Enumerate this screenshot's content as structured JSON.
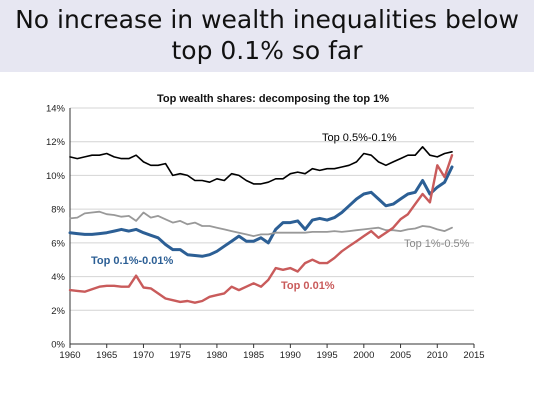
{
  "slide": {
    "title_line1": "No increase in wealth inequalities below",
    "title_line2": "top 0.1% so far"
  },
  "chart_data": {
    "type": "line",
    "title": "Top wealth shares: decomposing the top 1%",
    "xlabel": "",
    "ylabel": "",
    "xlim": [
      1960,
      2015
    ],
    "ylim": [
      0,
      14
    ],
    "x_ticks": [
      "1960",
      "1965",
      "1970",
      "1975",
      "1980",
      "1985",
      "1990",
      "1995",
      "2000",
      "2005",
      "2010",
      "2015"
    ],
    "y_ticks": [
      "0%",
      "2%",
      "4%",
      "6%",
      "8%",
      "10%",
      "12%",
      "14%"
    ],
    "grid": "horizontal",
    "x": [
      1960,
      1961,
      1962,
      1963,
      1964,
      1965,
      1966,
      1967,
      1968,
      1969,
      1970,
      1971,
      1972,
      1973,
      1974,
      1975,
      1976,
      1977,
      1978,
      1979,
      1980,
      1981,
      1982,
      1983,
      1984,
      1985,
      1986,
      1987,
      1988,
      1989,
      1990,
      1991,
      1992,
      1993,
      1994,
      1995,
      1996,
      1997,
      1998,
      1999,
      2000,
      2001,
      2002,
      2003,
      2004,
      2005,
      2006,
      2007,
      2008,
      2009,
      2010,
      2011,
      2012
    ],
    "series": [
      {
        "name": "Top 0.5%-0.1%",
        "color": "#000000",
        "label_color": "#000000",
        "values": [
          11.1,
          11.0,
          11.1,
          11.2,
          11.2,
          11.3,
          11.1,
          11.0,
          11.0,
          11.2,
          10.8,
          10.6,
          10.6,
          10.7,
          10.0,
          10.1,
          10.0,
          9.7,
          9.7,
          9.6,
          9.8,
          9.7,
          10.1,
          10.0,
          9.7,
          9.5,
          9.5,
          9.6,
          9.8,
          9.8,
          10.1,
          10.2,
          10.1,
          10.4,
          10.3,
          10.4,
          10.4,
          10.5,
          10.6,
          10.8,
          11.3,
          11.2,
          10.8,
          10.6,
          10.8,
          11.0,
          11.2,
          11.2,
          11.7,
          11.2,
          11.1,
          11.3,
          11.4
        ]
      },
      {
        "name": "Top 0.1%-0.01%",
        "color": "#2c5f95",
        "label_color": "#2c5f95",
        "values": [
          6.6,
          6.55,
          6.5,
          6.5,
          6.55,
          6.6,
          6.7,
          6.8,
          6.7,
          6.8,
          6.6,
          6.45,
          6.3,
          5.9,
          5.6,
          5.6,
          5.3,
          5.25,
          5.2,
          5.3,
          5.5,
          5.8,
          6.1,
          6.4,
          6.1,
          6.1,
          6.3,
          6.0,
          6.8,
          7.2,
          7.2,
          7.3,
          6.8,
          7.35,
          7.45,
          7.35,
          7.5,
          7.8,
          8.2,
          8.6,
          8.9,
          9.0,
          8.6,
          8.2,
          8.3,
          8.6,
          8.9,
          9.0,
          9.7,
          8.9,
          9.3,
          9.6,
          10.5
        ]
      },
      {
        "name": "Top 1%-0.5%",
        "color": "#999999",
        "label_color": "#888888",
        "values": [
          7.45,
          7.5,
          7.75,
          7.8,
          7.85,
          7.7,
          7.65,
          7.55,
          7.6,
          7.3,
          7.8,
          7.5,
          7.6,
          7.4,
          7.2,
          7.3,
          7.1,
          7.2,
          7.0,
          7.0,
          6.9,
          6.8,
          6.7,
          6.6,
          6.5,
          6.4,
          6.5,
          6.5,
          6.6,
          6.6,
          6.6,
          6.6,
          6.6,
          6.65,
          6.65,
          6.65,
          6.7,
          6.65,
          6.7,
          6.75,
          6.8,
          6.85,
          6.9,
          6.75,
          6.75,
          6.7,
          6.8,
          6.85,
          7.0,
          6.95,
          6.8,
          6.7,
          6.9
        ]
      },
      {
        "name": "Top 0.01%",
        "color": "#c95b5b",
        "label_color": "#c95b5b",
        "values": [
          3.2,
          3.15,
          3.1,
          3.25,
          3.4,
          3.45,
          3.45,
          3.4,
          3.4,
          4.05,
          3.35,
          3.3,
          3.0,
          2.7,
          2.6,
          2.5,
          2.55,
          2.45,
          2.55,
          2.8,
          2.9,
          3.0,
          3.4,
          3.2,
          3.4,
          3.6,
          3.4,
          3.8,
          4.5,
          4.4,
          4.5,
          4.3,
          4.8,
          5.0,
          4.8,
          4.8,
          5.1,
          5.5,
          5.8,
          6.1,
          6.4,
          6.7,
          6.3,
          6.6,
          6.9,
          7.4,
          7.7,
          8.3,
          8.9,
          8.4,
          10.6,
          9.9,
          11.2
        ]
      }
    ],
    "labels": [
      {
        "text": "Top 0.5%-0.1%",
        "series": 0
      },
      {
        "text": "Top 0.1%-0.01%",
        "series": 1
      },
      {
        "text": "Top 1%-0.5%",
        "series": 2
      },
      {
        "text": "Top 0.01%",
        "series": 3
      }
    ]
  }
}
